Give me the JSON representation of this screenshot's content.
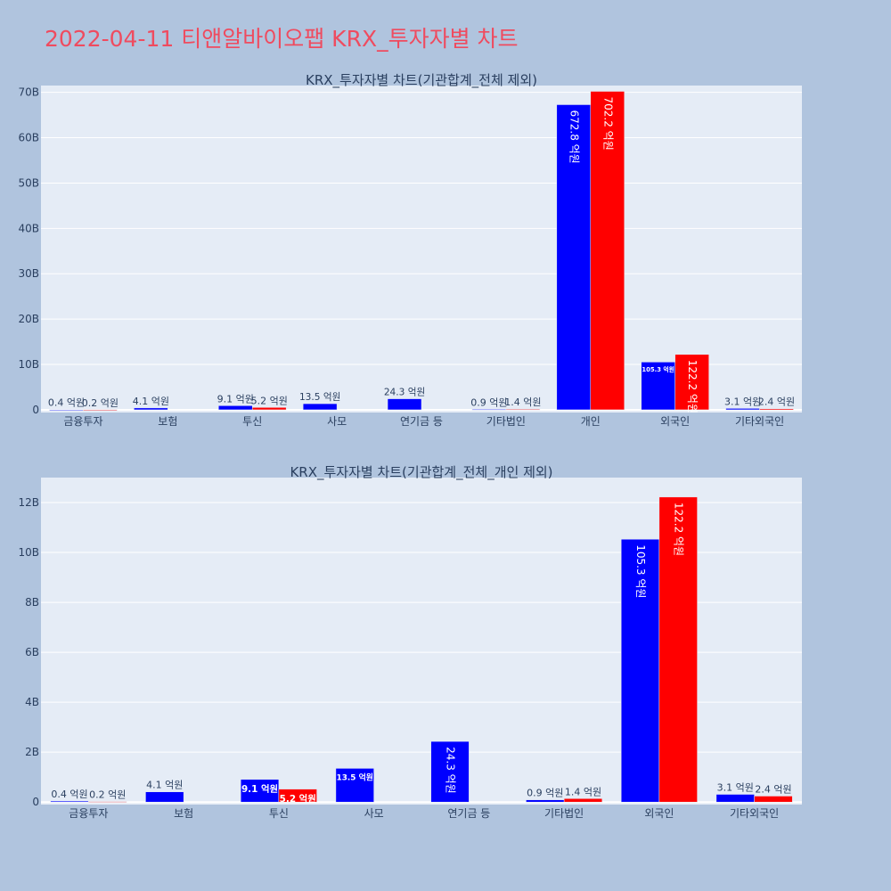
{
  "page_title": "2022-04-11 티앤알바이오팹 KRX_투자자별 차트",
  "colors": {
    "buy": "#0000ff",
    "sell": "#ff0000",
    "plot_bg": "#e5ecf6",
    "page_bg": "#b0c4de",
    "title": "#ef4b5f"
  },
  "chart_data": [
    {
      "type": "bar",
      "title": "KRX_투자자별 차트(기관합계_전체 제외)",
      "categories": [
        "금융투자",
        "보험",
        "투신",
        "사모",
        "연기금 등",
        "기타법인",
        "개인",
        "외국인",
        "기타외국인"
      ],
      "series": [
        {
          "values": [
            0.04,
            0.41,
            0.91,
            1.35,
            2.43,
            0.09,
            67.28,
            10.53,
            0.31
          ],
          "labels": [
            "0.4 억원",
            "4.1 억원",
            "9.1 억원",
            "13.5 억원",
            "24.3 억원",
            "0.9 억원",
            "672.8 억원",
            "105.3 억원",
            "3.1 억원"
          ]
        },
        {
          "values": [
            0.02,
            0,
            0.52,
            0,
            0,
            0.14,
            70.22,
            12.22,
            0.24
          ],
          "labels": [
            "0.2 억원",
            "",
            "5.2 억원",
            "",
            "",
            "1.4 억원",
            "702.2 억원",
            "122.2 억원",
            "2.4 억원"
          ]
        }
      ],
      "y_ticks": [
        0,
        10,
        20,
        30,
        40,
        50,
        60,
        70
      ],
      "y_tick_labels": [
        "0",
        "10B",
        "20B",
        "30B",
        "40B",
        "50B",
        "60B",
        "70B"
      ],
      "ylim": [
        -0.6,
        71.5
      ],
      "grid": true
    },
    {
      "type": "bar",
      "title": "KRX_투자자별 차트(기관합계_전체_개인 제외)",
      "categories": [
        "금융투자",
        "보험",
        "투신",
        "사모",
        "연기금 등",
        "기타법인",
        "외국인",
        "기타외국인"
      ],
      "series": [
        {
          "values": [
            0.04,
            0.41,
            0.91,
            1.35,
            2.43,
            0.09,
            10.53,
            0.31
          ],
          "labels": [
            "0.4 억원",
            "4.1 억원",
            "9.1 억원",
            "13.5 억원",
            "24.3 억원",
            "0.9 억원",
            "105.3 억원",
            "3.1 억원"
          ]
        },
        {
          "values": [
            0.02,
            0,
            0.52,
            0,
            0,
            0.14,
            12.22,
            0.24
          ],
          "labels": [
            "0.2 억원",
            "",
            "5.2 억원",
            "",
            "",
            "1.4 억원",
            "122.2 억원",
            "2.4 억원"
          ]
        }
      ],
      "y_ticks": [
        0,
        2,
        4,
        6,
        8,
        10,
        12
      ],
      "y_tick_labels": [
        "0",
        "2B",
        "4B",
        "6B",
        "8B",
        "10B",
        "12B"
      ],
      "ylim": [
        -0.1,
        13.0
      ],
      "grid": true
    }
  ]
}
